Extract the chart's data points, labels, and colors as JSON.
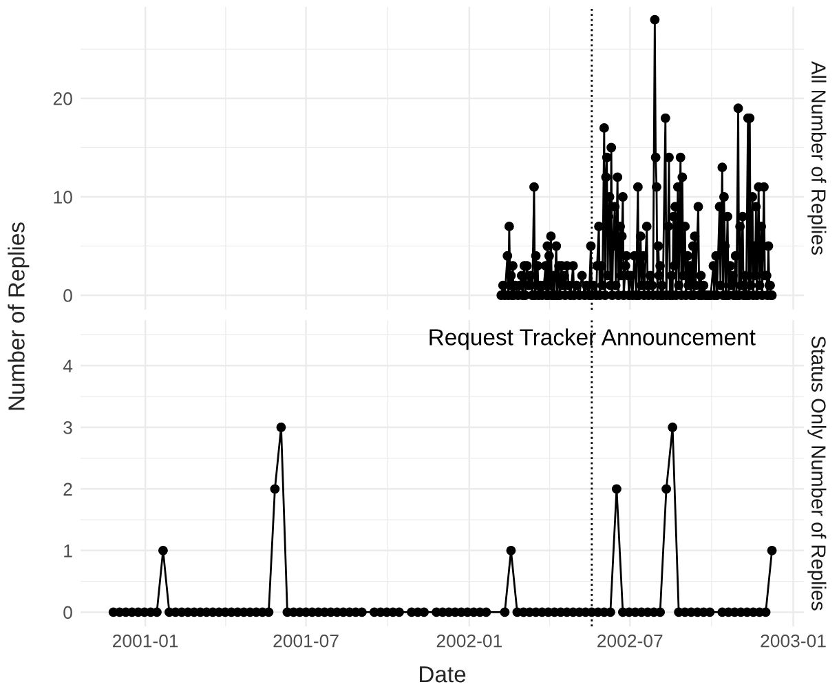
{
  "chart_data": [
    {
      "type": "line",
      "title": "All Number of Replies",
      "ylabel": "Number of Replies",
      "marker": "circle",
      "line_style": "solid",
      "grid": true,
      "tick_labels": "y",
      "xlim": [
        "2000-10-20",
        "2003-01-13"
      ],
      "ylim": [
        -1.47,
        29.3
      ],
      "yticks": [
        0,
        10,
        20
      ],
      "xticks": [
        {
          "value": "2001-01-01",
          "label": null
        },
        {
          "value": "2001-07-01",
          "label": null
        },
        {
          "value": "2002-01-01",
          "label": null
        },
        {
          "value": "2002-07-01",
          "label": null
        },
        {
          "value": "2003-01-01",
          "label": null
        }
      ],
      "ref_lines": [
        {
          "axis": "x",
          "value": "2002-05-19",
          "line_style": "dotted",
          "color": "#000000"
        }
      ],
      "series": [
        {
          "color": "#000000",
          "x": [
            "2002-02-06",
            "2002-02-08",
            "2002-02-10",
            "2002-02-13",
            "2002-02-14",
            "2002-02-15",
            "2002-02-16",
            "2002-02-17",
            "2002-02-18",
            "2002-02-19",
            "2002-02-20",
            "2002-02-22",
            "2002-02-25",
            "2002-02-27",
            "2002-03-01",
            "2002-03-02",
            "2002-03-04",
            "2002-03-05",
            "2002-03-07",
            "2002-03-09",
            "2002-03-11",
            "2002-03-13",
            "2002-03-15",
            "2002-03-16",
            "2002-03-17",
            "2002-03-18",
            "2002-03-19",
            "2002-03-20",
            "2002-03-22",
            "2002-03-24",
            "2002-03-26",
            "2002-03-28",
            "2002-03-29",
            "2002-03-30",
            "2002-03-31",
            "2002-04-01",
            "2002-04-02",
            "2002-04-03",
            "2002-04-04",
            "2002-04-06",
            "2002-04-07",
            "2002-04-09",
            "2002-04-10",
            "2002-04-12",
            "2002-04-13",
            "2002-04-15",
            "2002-04-16",
            "2002-04-18",
            "2002-04-19",
            "2002-04-21",
            "2002-04-23",
            "2002-04-25",
            "2002-04-28",
            "2002-04-29",
            "2002-05-02",
            "2002-05-05",
            "2002-05-08",
            "2002-05-11",
            "2002-05-13",
            "2002-05-16",
            "2002-05-18",
            "2002-05-19",
            "2002-05-21",
            "2002-05-24",
            "2002-05-25",
            "2002-05-27",
            "2002-05-28",
            "2002-05-30",
            "2002-05-31",
            "2002-06-02",
            "2002-06-03",
            "2002-06-04",
            "2002-06-05",
            "2002-06-06",
            "2002-06-07",
            "2002-06-08",
            "2002-06-09",
            "2002-06-10",
            "2002-06-11",
            "2002-06-12",
            "2002-06-14",
            "2002-06-15",
            "2002-06-17",
            "2002-06-18",
            "2002-06-20",
            "2002-06-21",
            "2002-06-22",
            "2002-06-23",
            "2002-06-24",
            "2002-06-26",
            "2002-06-27",
            "2002-06-29",
            "2002-06-30",
            "2002-07-02",
            "2002-07-04",
            "2002-07-06",
            "2002-07-08",
            "2002-07-10",
            "2002-07-11",
            "2002-07-13",
            "2002-07-14",
            "2002-07-16",
            "2002-07-17",
            "2002-07-20",
            "2002-07-21",
            "2002-07-22",
            "2002-07-24",
            "2002-07-26",
            "2002-07-27",
            "2002-07-29",
            "2002-07-30",
            "2002-07-31",
            "2002-08-01",
            "2002-08-02",
            "2002-08-03",
            "2002-08-04",
            "2002-08-05",
            "2002-08-06",
            "2002-08-07",
            "2002-08-10",
            "2002-08-11",
            "2002-08-13",
            "2002-08-14",
            "2002-08-15",
            "2002-08-17",
            "2002-08-18",
            "2002-08-19",
            "2002-08-20",
            "2002-08-21",
            "2002-08-22",
            "2002-08-24",
            "2002-08-25",
            "2002-08-27",
            "2002-08-28",
            "2002-08-29",
            "2002-08-30",
            "2002-09-01",
            "2002-09-02",
            "2002-09-04",
            "2002-09-05",
            "2002-09-07",
            "2002-09-08",
            "2002-09-10",
            "2002-09-11",
            "2002-09-12",
            "2002-09-13",
            "2002-09-16",
            "2002-09-17",
            "2002-09-19",
            "2002-09-20",
            "2002-09-22",
            "2002-09-24",
            "2002-09-26",
            "2002-09-28",
            "2002-09-30",
            "2002-10-03",
            "2002-10-04",
            "2002-10-06",
            "2002-10-07",
            "2002-10-10",
            "2002-10-11",
            "2002-10-13",
            "2002-10-14",
            "2002-10-15",
            "2002-10-16",
            "2002-10-17",
            "2002-10-19",
            "2002-10-20",
            "2002-10-22",
            "2002-10-23",
            "2002-10-25",
            "2002-10-26",
            "2002-10-28",
            "2002-10-29",
            "2002-10-31",
            "2002-11-01",
            "2002-11-02",
            "2002-11-03",
            "2002-11-05",
            "2002-11-06",
            "2002-11-08",
            "2002-11-09",
            "2002-11-11",
            "2002-11-12",
            "2002-11-13",
            "2002-11-14",
            "2002-11-16",
            "2002-11-17",
            "2002-11-18",
            "2002-11-19",
            "2002-11-20",
            "2002-11-21",
            "2002-11-23",
            "2002-11-24",
            "2002-11-26",
            "2002-11-27",
            "2002-11-29",
            "2002-11-30",
            "2002-12-02",
            "2002-12-03",
            "2002-12-04",
            "2002-12-05",
            "2002-12-06",
            "2002-12-07",
            "2002-12-08"
          ],
          "values": [
            0,
            1,
            0,
            4,
            0,
            7,
            1,
            2,
            0,
            3,
            0,
            1,
            0,
            1,
            2,
            0,
            3,
            0,
            3,
            1,
            2,
            0,
            11,
            0,
            4,
            1,
            3,
            0,
            1,
            0,
            1,
            3,
            0,
            5,
            0,
            4,
            1,
            6,
            0,
            2,
            0,
            5,
            0,
            3,
            0,
            3,
            1,
            2,
            0,
            3,
            1,
            0,
            3,
            0,
            1,
            0,
            2,
            0,
            1,
            0,
            5,
            0,
            1,
            0,
            3,
            7,
            0,
            3,
            1,
            17,
            0,
            12,
            14,
            2,
            8,
            10,
            1,
            15,
            0,
            5,
            9,
            1,
            12,
            0,
            7,
            2,
            6,
            10,
            0,
            3,
            4,
            2,
            0,
            2,
            0,
            4,
            0,
            11,
            0,
            6,
            1,
            4,
            0,
            7,
            1,
            0,
            2,
            1,
            0,
            28,
            14,
            11,
            0,
            5,
            2,
            3,
            0,
            1,
            0,
            18,
            0,
            7,
            14,
            0,
            2,
            0,
            8,
            3,
            9,
            0,
            11,
            1,
            14,
            0,
            12,
            2,
            7,
            0,
            4,
            1,
            3,
            0,
            5,
            0,
            6,
            1,
            9,
            0,
            2,
            0,
            1,
            0,
            0,
            0,
            0,
            3,
            0,
            4,
            0,
            9,
            1,
            13,
            0,
            10,
            5,
            0,
            8,
            0,
            3,
            1,
            2,
            0,
            4,
            0,
            19,
            0,
            7,
            1,
            8,
            0,
            2,
            0,
            18,
            0,
            18,
            1,
            10,
            0,
            5,
            2,
            9,
            0,
            11,
            1,
            7,
            0,
            11,
            2,
            2,
            0,
            5,
            1,
            1,
            0,
            0
          ]
        }
      ]
    },
    {
      "type": "line",
      "title": "Status Only Number of Replies",
      "xlabel": "Date",
      "marker": "circle",
      "line_style": "solid",
      "grid": true,
      "xlim": [
        "2000-10-20",
        "2003-01-13"
      ],
      "ylim": [
        -0.23,
        4.74
      ],
      "yticks": [
        0,
        1,
        2,
        3,
        4
      ],
      "xticks": [
        {
          "value": "2001-01-01",
          "label": "2001-01"
        },
        {
          "value": "2001-07-01",
          "label": "2001-07"
        },
        {
          "value": "2002-01-01",
          "label": "2002-01"
        },
        {
          "value": "2002-07-01",
          "label": "2002-07"
        },
        {
          "value": "2003-01-01",
          "label": "2003-01"
        }
      ],
      "ref_lines": [
        {
          "axis": "x",
          "value": "2002-05-19",
          "line_style": "dotted",
          "color": "#000000"
        }
      ],
      "annotations": [
        {
          "text": "Request Tracker Announcement",
          "x": "2002-05-19",
          "y": 4.43
        }
      ],
      "series": [
        {
          "color": "#000000",
          "x": [
            "2000-11-26",
            "2000-12-03",
            "2000-12-10",
            "2000-12-17",
            "2000-12-24",
            "2000-12-31",
            "2001-01-07",
            "2001-01-14",
            "2001-01-21",
            "2001-01-28",
            "2001-02-04",
            "2001-02-11",
            "2001-02-18",
            "2001-02-25",
            "2001-03-04",
            "2001-03-11",
            "2001-03-18",
            "2001-03-25",
            "2001-04-01",
            "2001-04-08",
            "2001-04-15",
            "2001-04-22",
            "2001-04-29",
            "2001-05-06",
            "2001-05-13",
            "2001-05-20",
            "2001-05-27",
            "2001-06-03",
            "2001-06-10",
            "2001-06-17",
            "2001-06-24",
            "2001-07-01",
            "2001-07-08",
            "2001-07-15",
            "2001-07-22",
            "2001-07-29",
            "2001-08-05",
            "2001-08-12",
            "2001-08-19",
            "2001-08-26",
            "2001-09-02",
            "2001-09-16",
            "2001-09-23",
            "2001-09-30",
            "2001-10-07",
            "2001-10-14",
            "2001-10-28",
            "2001-11-04",
            "2001-11-11",
            "2001-11-25",
            "2001-12-02",
            "2001-12-09",
            "2001-12-16",
            "2001-12-23",
            "2001-12-30",
            "2002-01-06",
            "2002-01-13",
            "2002-01-20",
            "2002-02-10",
            "2002-02-17",
            "2002-02-24",
            "2002-03-03",
            "2002-03-10",
            "2002-03-17",
            "2002-03-24",
            "2002-03-31",
            "2002-04-07",
            "2002-04-14",
            "2002-04-21",
            "2002-04-28",
            "2002-05-05",
            "2002-05-12",
            "2002-05-19",
            "2002-05-26",
            "2002-06-02",
            "2002-06-09",
            "2002-06-16",
            "2002-06-23",
            "2002-06-30",
            "2002-07-07",
            "2002-07-14",
            "2002-07-21",
            "2002-07-28",
            "2002-08-04",
            "2002-08-11",
            "2002-08-18",
            "2002-08-25",
            "2002-09-01",
            "2002-09-08",
            "2002-09-15",
            "2002-09-22",
            "2002-09-29",
            "2002-10-13",
            "2002-10-20",
            "2002-10-27",
            "2002-11-03",
            "2002-11-10",
            "2002-11-17",
            "2002-11-24",
            "2002-12-01",
            "2002-12-08"
          ],
          "values": [
            0,
            0,
            0,
            0,
            0,
            0,
            0,
            0,
            1,
            0,
            0,
            0,
            0,
            0,
            0,
            0,
            0,
            0,
            0,
            0,
            0,
            0,
            0,
            0,
            0,
            0,
            2,
            3,
            0,
            0,
            0,
            0,
            0,
            0,
            0,
            0,
            0,
            0,
            0,
            0,
            0,
            0,
            0,
            0,
            0,
            0,
            0,
            0,
            0,
            0,
            0,
            0,
            0,
            0,
            0,
            0,
            0,
            0,
            0,
            1,
            0,
            0,
            0,
            0,
            0,
            0,
            0,
            0,
            0,
            0,
            0,
            0,
            0,
            0,
            0,
            0,
            2,
            0,
            0,
            0,
            0,
            0,
            0,
            0,
            2,
            3,
            0,
            0,
            0,
            0,
            0,
            0,
            0,
            0,
            0,
            0,
            0,
            0,
            0,
            0,
            1
          ]
        }
      ]
    }
  ]
}
